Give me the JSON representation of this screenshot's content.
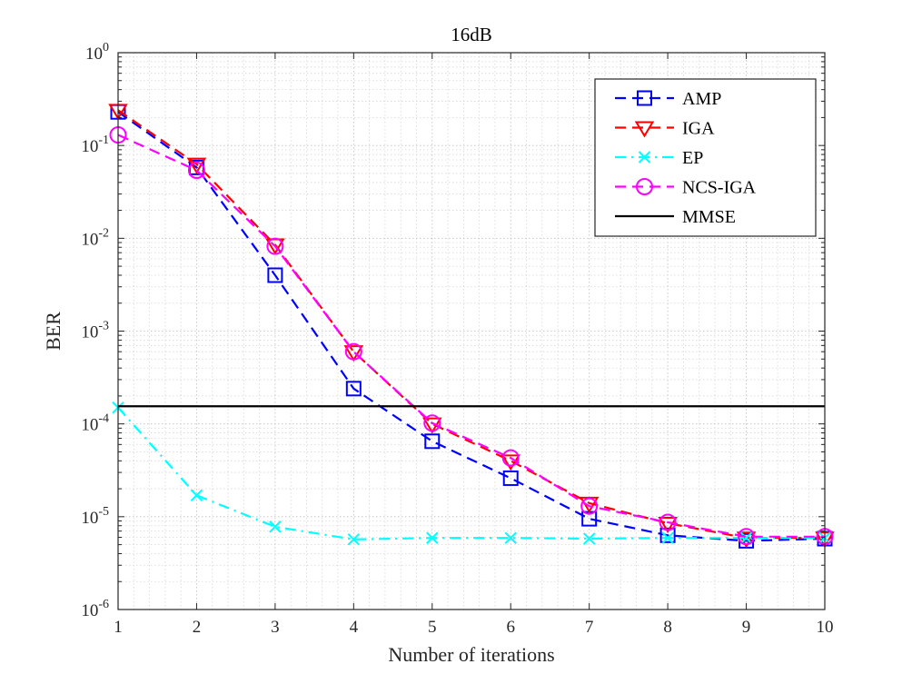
{
  "chart_data": {
    "type": "line",
    "title": "16dB",
    "xlabel": "Number of iterations",
    "ylabel": "BER",
    "xlim": [
      1,
      10
    ],
    "ylim_exponents": [
      -6,
      0
    ],
    "yscale": "log",
    "x_ticks": [
      "1",
      "2",
      "3",
      "4",
      "5",
      "6",
      "7",
      "8",
      "9",
      "10"
    ],
    "y_tick_base": "10",
    "y_tick_exponents": [
      "-6",
      "-5",
      "-4",
      "-3",
      "-2",
      "-1",
      "0"
    ],
    "grid": true,
    "legend_position": "top-right",
    "x": [
      1,
      2,
      3,
      4,
      5,
      6,
      7,
      8,
      9,
      10
    ],
    "series": [
      {
        "name": "AMP",
        "color": "#0000ff",
        "dash": "dashed",
        "marker": "square",
        "values": [
          0.23,
          0.058,
          0.004,
          0.00024,
          6.5e-05,
          2.6e-05,
          9.5e-06,
          6.3e-06,
          5.5e-06,
          5.8e-06
        ]
      },
      {
        "name": "IGA",
        "color": "#ff0000",
        "dash": "dashed",
        "marker": "triangle-down",
        "values": [
          0.24,
          0.063,
          0.0085,
          0.0006,
          0.0001,
          4e-05,
          1.4e-05,
          8.5e-06,
          5.9e-06,
          5.9e-06
        ]
      },
      {
        "name": "EP",
        "color": "#00ffff",
        "dash": "dashdot",
        "marker": "x",
        "values": [
          0.00015,
          1.7e-05,
          7.8e-06,
          5.7e-06,
          5.9e-06,
          5.9e-06,
          5.8e-06,
          5.9e-06,
          5.9e-06,
          5.9e-06
        ]
      },
      {
        "name": "NCS-IGA",
        "color": "#ff00ff",
        "dash": "dashed",
        "marker": "circle",
        "values": [
          0.13,
          0.054,
          0.0082,
          0.0006,
          0.000102,
          4.3e-05,
          1.3e-05,
          8.7e-06,
          6.1e-06,
          6.1e-06
        ]
      },
      {
        "name": "MMSE",
        "color": "#000000",
        "dash": "solid",
        "marker": "none",
        "values": [
          0.000155,
          0.000155,
          0.000155,
          0.000155,
          0.000155,
          0.000155,
          0.000155,
          0.000155,
          0.000155,
          0.000155
        ]
      }
    ]
  }
}
